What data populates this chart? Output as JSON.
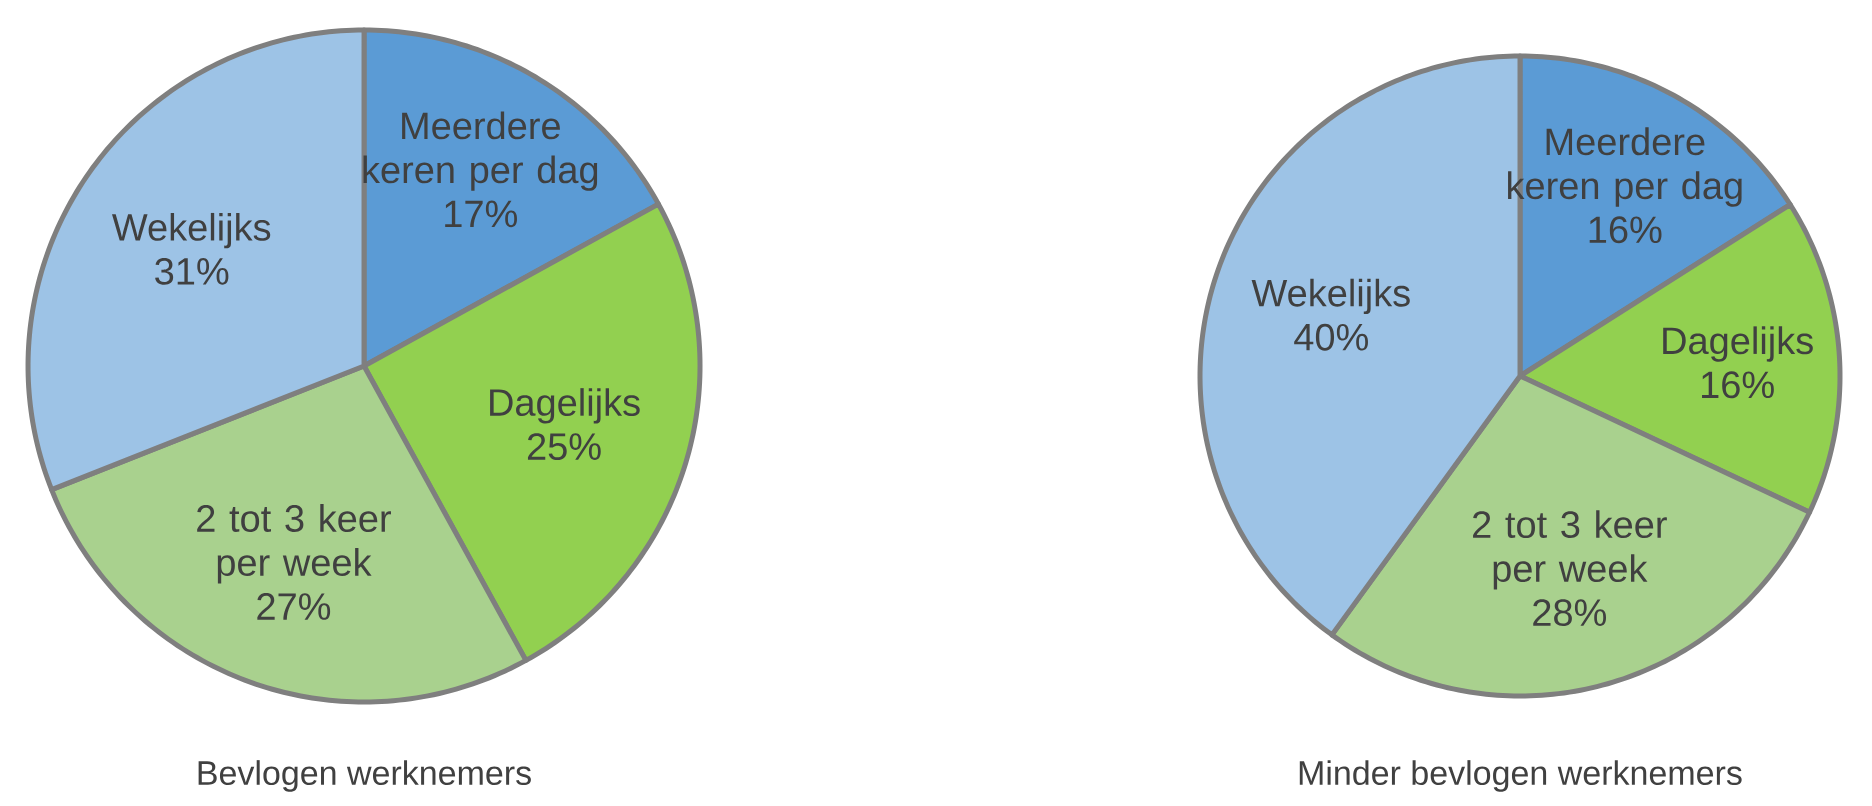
{
  "chart_data": [
    {
      "type": "pie",
      "title": "Bevlogen werknemers",
      "categories": [
        "Meerdere keren per dag",
        "Dagelijks",
        "2 tot 3 keer per week",
        "Wekelijks"
      ],
      "values": [
        17,
        25,
        27,
        31
      ],
      "value_labels": [
        "17%",
        "25%",
        "27%",
        "31%"
      ],
      "colors": [
        "#5b9bd5",
        "#92d050",
        "#a9d18e",
        "#9dc3e6"
      ]
    },
    {
      "type": "pie",
      "title": "Minder bevlogen werknemers",
      "categories": [
        "Meerdere keren per dag",
        "Dagelijks",
        "2 tot 3 keer per week",
        "Wekelijks"
      ],
      "values": [
        16,
        16,
        28,
        40
      ],
      "value_labels": [
        "16%",
        "16%",
        "28%",
        "40%"
      ],
      "colors": [
        "#5b9bd5",
        "#92d050",
        "#a9d18e",
        "#9dc3e6"
      ]
    }
  ]
}
